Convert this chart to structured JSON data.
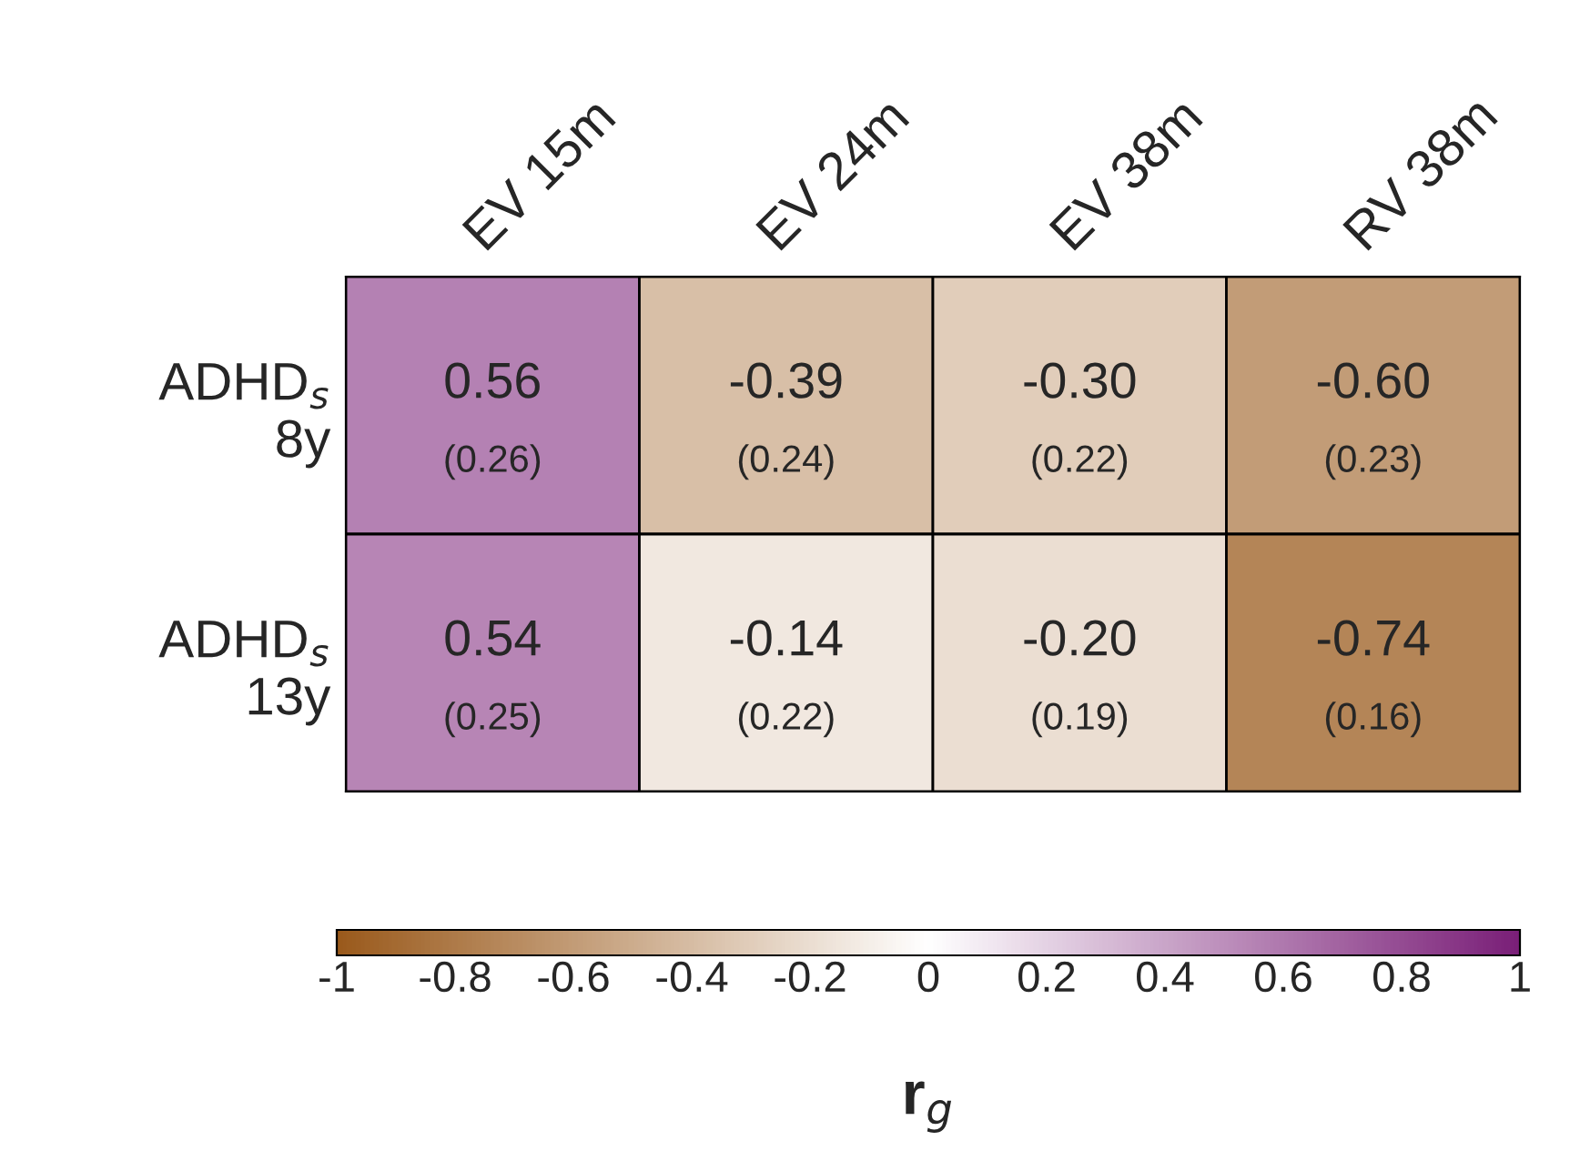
{
  "chart_data": {
    "type": "heatmap",
    "categories": [
      "EV 15m",
      "EV 24m",
      "EV 38m",
      "RV 38m"
    ],
    "y_categories": [
      "ADHD$_{s}$\n8y",
      "ADHD$_{s}$\n13y"
    ],
    "cells": [
      [
        0.56,
        -0.39,
        -0.3,
        -0.6
      ],
      [
        0.54,
        -0.14,
        -0.2,
        -0.74
      ]
    ],
    "cell_labels": [
      [
        "0.56\n(0.26)",
        "-0.39\n(0.24)",
        "-0.30\n(0.22)",
        "-0.60\n(0.23)"
      ],
      [
        "0.54\n(0.25)",
        "-0.14\n(0.22)",
        "-0.20\n(0.19)",
        "-0.74\n(0.16)"
      ]
    ],
    "clim": [
      -1,
      1
    ],
    "cticks": [
      -1,
      -0.8,
      -0.6,
      -0.4,
      -0.2,
      0,
      0.2,
      0.4,
      0.6,
      0.8,
      1
    ],
    "clabel": "r$_{g}$"
  }
}
